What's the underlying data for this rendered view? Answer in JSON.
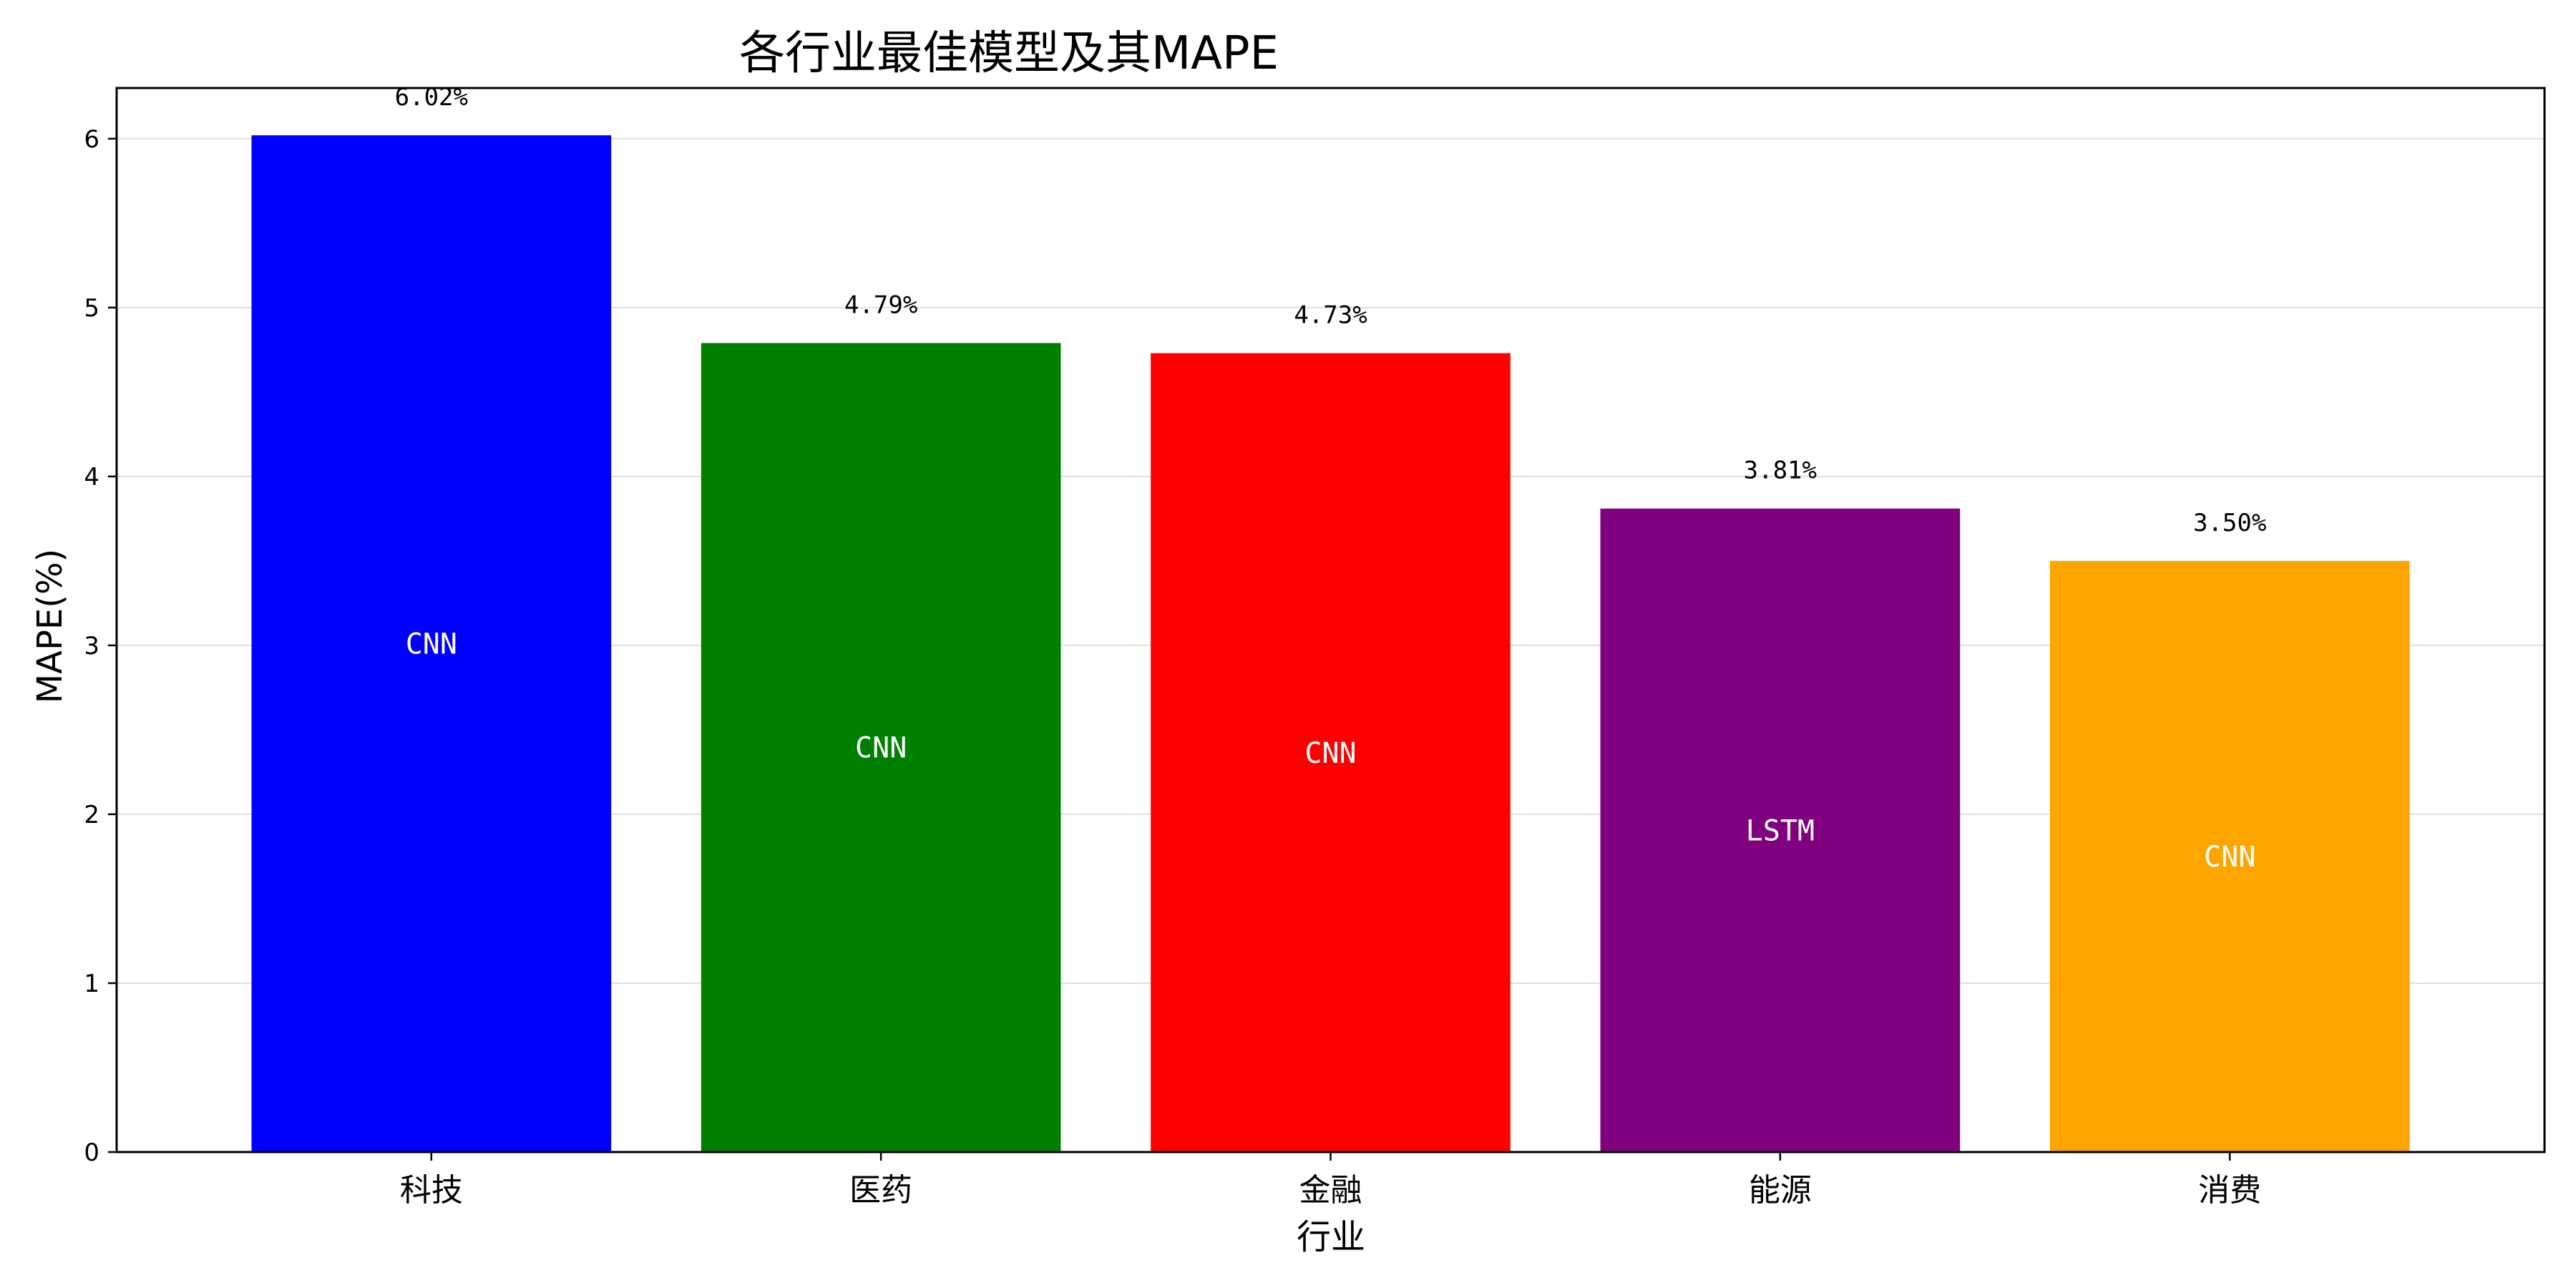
{
  "chart_data": {
    "type": "bar",
    "title": "各行业最佳模型及其MAPE",
    "xlabel": "行业",
    "ylabel": "MAPE(%)",
    "categories": [
      "科技",
      "医药",
      "金融",
      "能源",
      "消费"
    ],
    "values": [
      6.02,
      4.79,
      4.73,
      3.81,
      3.5
    ],
    "value_labels": [
      "6.02%",
      "4.79%",
      "4.73%",
      "3.81%",
      "3.50%"
    ],
    "models": [
      "CNN",
      "CNN",
      "CNN",
      "LSTM",
      "CNN"
    ],
    "colors": [
      "#0000ff",
      "#008000",
      "#ff0000",
      "#800080",
      "#ffa500"
    ],
    "ylim": [
      0,
      6.3
    ],
    "yticks": [
      0,
      1,
      2,
      3,
      4,
      5,
      6
    ],
    "grid": "y",
    "legend": "none"
  }
}
